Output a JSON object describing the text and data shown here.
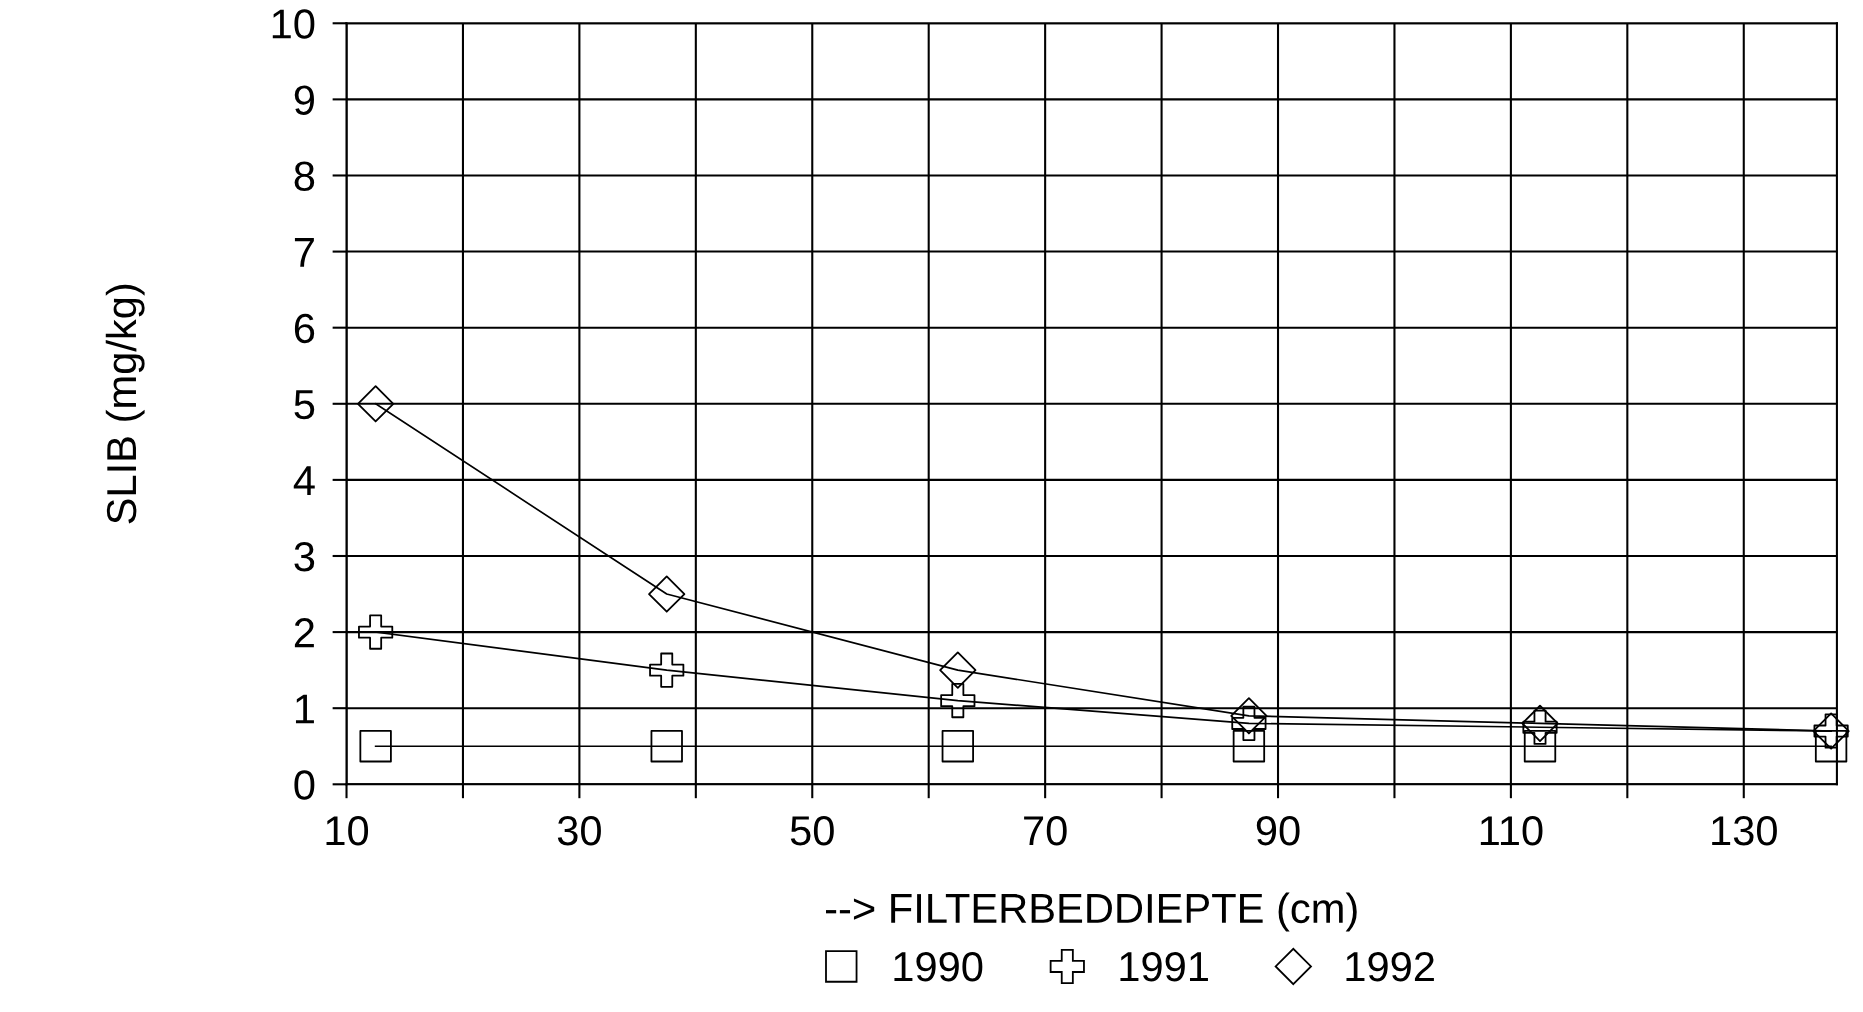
{
  "chart_data": {
    "type": "line",
    "xlabel": "--> FILTERBEDDIEPTE (cm)",
    "ylabel": "SLIB (mg/kg)",
    "x": [
      12.5,
      37.5,
      62.5,
      87.5,
      112.5,
      137.5
    ],
    "series": [
      {
        "name": "1990",
        "color": "#000000",
        "marker": "square",
        "values": [
          0.5,
          0.5,
          0.5,
          0.5,
          0.5,
          0.5
        ]
      },
      {
        "name": "1991",
        "color": "#000000",
        "marker": "cross",
        "values": [
          2.0,
          1.5,
          1.1,
          0.8,
          0.75,
          0.7
        ]
      },
      {
        "name": "1992",
        "color": "#000000",
        "marker": "diamond",
        "values": [
          5.0,
          2.5,
          1.5,
          0.9,
          0.8,
          0.7
        ]
      }
    ],
    "xlim": [
      10,
      138
    ],
    "xticks": [
      10,
      {
        "value": 20,
        "label": null
      },
      30,
      {
        "value": 40,
        "label": null
      },
      50,
      {
        "value": 60,
        "label": null
      },
      70,
      {
        "value": 80,
        "label": null
      },
      90,
      {
        "value": 100,
        "label": null
      },
      110,
      {
        "value": 120,
        "label": null
      },
      130
    ],
    "ylim": [
      0,
      10
    ],
    "yticks": [
      0,
      1,
      2,
      3,
      4,
      5,
      6,
      7,
      8,
      9,
      10
    ],
    "grid": true,
    "legend": "bottom",
    "line_style": "solid"
  }
}
